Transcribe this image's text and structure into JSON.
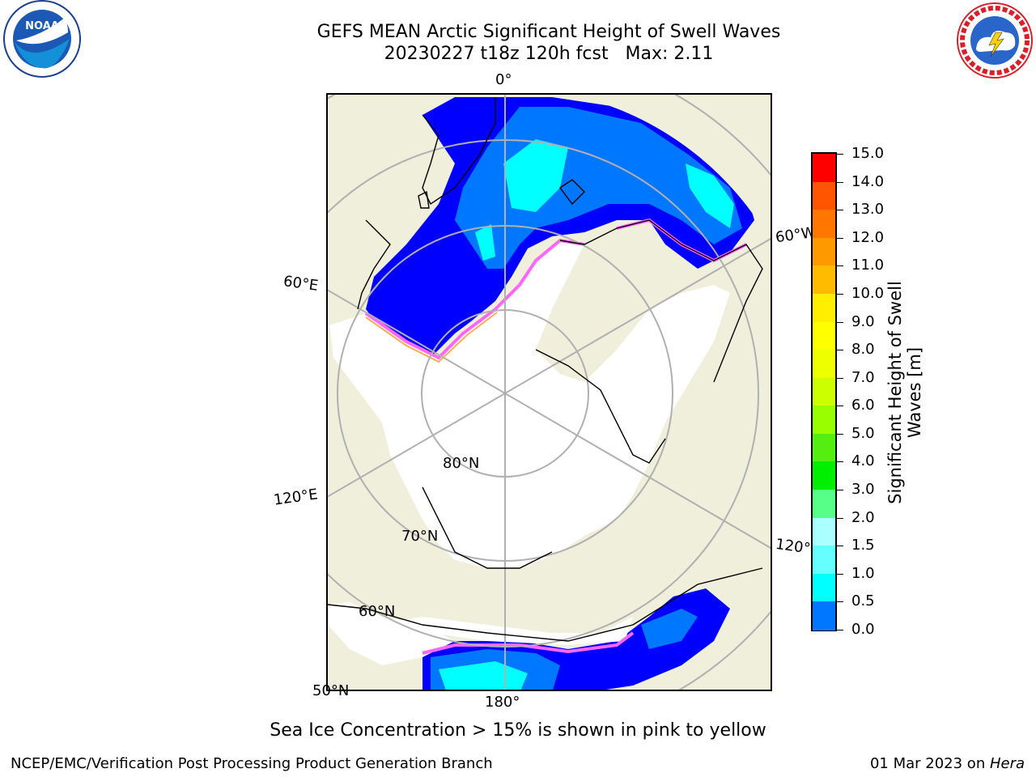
{
  "header": {
    "title_line1": "GEFS MEAN Arctic Significant Height of Swell Waves",
    "title_line2": "20230227 t18z 120h fcst   Max: 2.11"
  },
  "logos": {
    "left": "NOAA",
    "left_ring_text": "NATIONAL OCEANIC AND ATMOSPHERIC ADMINISTRATION · U.S. DEPARTMENT OF COMMERCE",
    "right_ring_text": "NATIONAL WEATHER SERVICE"
  },
  "map_labels": {
    "lon_top": "0°",
    "lon_bottom": "180°",
    "lon_left_upper": "60°E",
    "lon_left_lower": "120°E",
    "lon_right_upper": "60°W",
    "lon_right_lower": "120°W",
    "lat_80": "80°N",
    "lat_70": "70°N",
    "lat_60": "60°N",
    "lat_50": "50°N"
  },
  "colorbar": {
    "title": "Significant Height of Swell Waves [m]",
    "ticks": [
      "15.0",
      "14.0",
      "13.0",
      "12.0",
      "11.0",
      "10.0",
      "9.0",
      "8.0",
      "7.0",
      "6.0",
      "5.0",
      "4.0",
      "3.0",
      "2.0",
      "1.5",
      "1.0",
      "0.5",
      "0.0"
    ],
    "colors": [
      "#ff0000",
      "#ff2200",
      "#ff5500",
      "#ff7700",
      "#ff9900",
      "#ffbb00",
      "#ffee00",
      "#ffff00",
      "#eeff00",
      "#ccff00",
      "#99ff00",
      "#55ee11",
      "#00ee00",
      "#55ff88",
      "#aaffff",
      "#66ffff",
      "#00ffff",
      "#0077ff",
      "#0000ff"
    ]
  },
  "colors": {
    "land": "#efefdc",
    "ocean_low": "#0000ff",
    "ocean_mid": "#0077ff",
    "ocean_high": "#00ffff",
    "ice": "#ffffff",
    "ice_edge_pink": "#ff66ff",
    "ice_edge_orange": "#ffaa55",
    "grid": "#b0b0b0"
  },
  "footer": {
    "note": "Sea Ice Concentration > 15% is shown in pink to yellow",
    "left": "NCEP/EMC/Verification Post Processing Product Generation Branch",
    "right_date": "01 Mar 2023 on ",
    "right_host": "Hera"
  }
}
